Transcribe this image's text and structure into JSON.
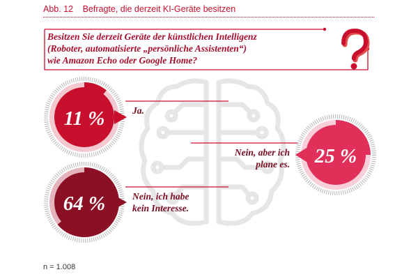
{
  "header": {
    "figure_number": "Abb. 12",
    "figure_title": "Befragte, die derzeit KI-Geräte besitzen"
  },
  "question": {
    "lines": [
      "Besitzen Sie derzeit Geräte der künstlichen Intelligenz",
      "(Roboter, automatisierte „persönliche Assistenten“)",
      "wie Amazon Echo oder Google Home?"
    ],
    "icon": "question-mark-icon"
  },
  "chart_data": {
    "type": "pie",
    "categories": [
      "Ja.",
      "Nein, aber ich plane es.",
      "Nein, ich habe kein Interesse."
    ],
    "values": [
      11,
      25,
      64
    ],
    "value_labels": [
      "11 %",
      "25 %",
      "64 %"
    ],
    "label_lines": [
      [
        "Ja."
      ],
      [
        "Nein, aber ich",
        "plane es."
      ],
      [
        "Nein, ich habe",
        "kein Interesse."
      ]
    ],
    "colors": [
      "#c8102e",
      "#e0305a",
      "#8b0f25"
    ]
  },
  "footer": {
    "sample_size": "n = 1.008"
  },
  "colors": {
    "accent": "#c8102e",
    "brain": "#e6e6e6",
    "ring": "#b5b5b5"
  },
  "background_icon": "brain-circuit-icon"
}
